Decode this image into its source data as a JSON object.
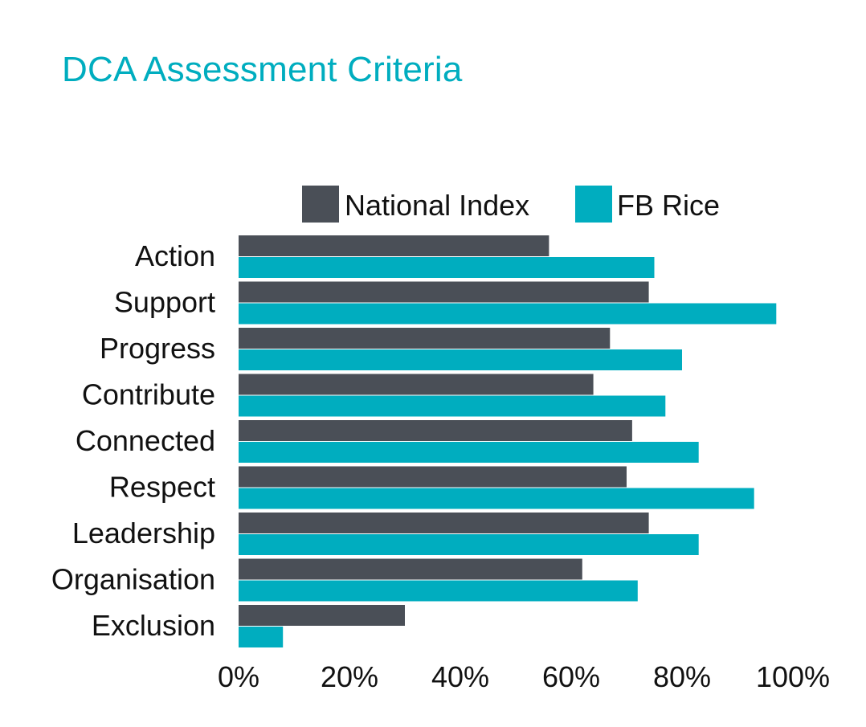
{
  "chart_data": {
    "type": "bar",
    "orientation": "horizontal",
    "title": "DCA Assessment Criteria",
    "categories": [
      "Action",
      "Support",
      "Progress",
      "Contribute",
      "Connected",
      "Respect",
      "Leadership",
      "Organisation",
      "Exclusion"
    ],
    "series": [
      {
        "name": "National Index",
        "color": "#4a4f57",
        "values": [
          56,
          74,
          67,
          64,
          71,
          70,
          74,
          62,
          30
        ]
      },
      {
        "name": "FB Rice",
        "color": "#00adbf",
        "values": [
          75,
          97,
          80,
          77,
          83,
          93,
          83,
          72,
          8
        ]
      }
    ],
    "xlim": [
      0,
      100
    ],
    "xticks": [
      0,
      20,
      40,
      60,
      80,
      100
    ],
    "xtick_labels": [
      "0%",
      "20%",
      "40%",
      "60%",
      "80%",
      "100%"
    ],
    "legend_position": "top",
    "grid": false
  }
}
